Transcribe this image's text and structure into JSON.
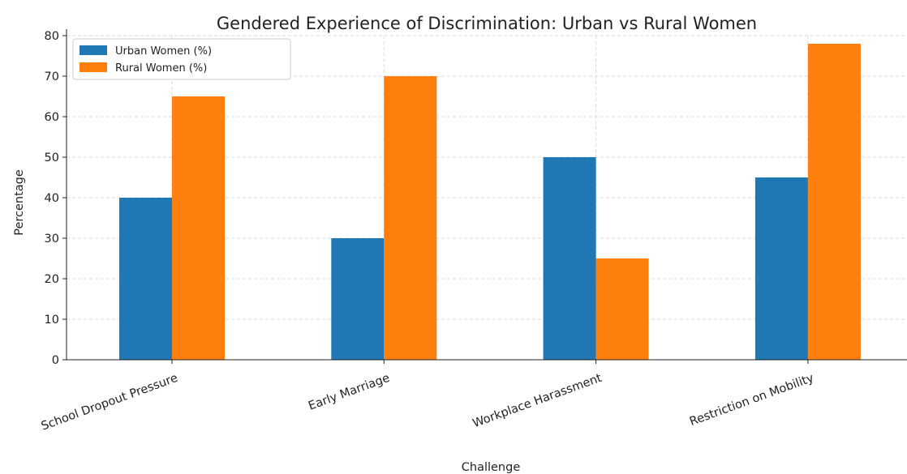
{
  "chart_data": {
    "type": "bar",
    "title": "Gendered Experience of Discrimination: Urban vs Rural Women",
    "xlabel": "Challenge",
    "ylabel": "Percentage",
    "categories": [
      "School Dropout Pressure",
      "Early Marriage",
      "Workplace Harassment",
      "Restriction on Mobility"
    ],
    "series": [
      {
        "name": "Urban Women (%)",
        "color": "#1f77b4",
        "values": [
          40,
          30,
          50,
          45
        ]
      },
      {
        "name": "Rural Women (%)",
        "color": "#ff7f0e",
        "values": [
          65,
          70,
          25,
          78
        ]
      }
    ],
    "ylim": [
      0,
      80
    ],
    "yticks": [
      0,
      10,
      20,
      30,
      40,
      50,
      60,
      70,
      80
    ],
    "grid": true,
    "legend": "top-left"
  }
}
